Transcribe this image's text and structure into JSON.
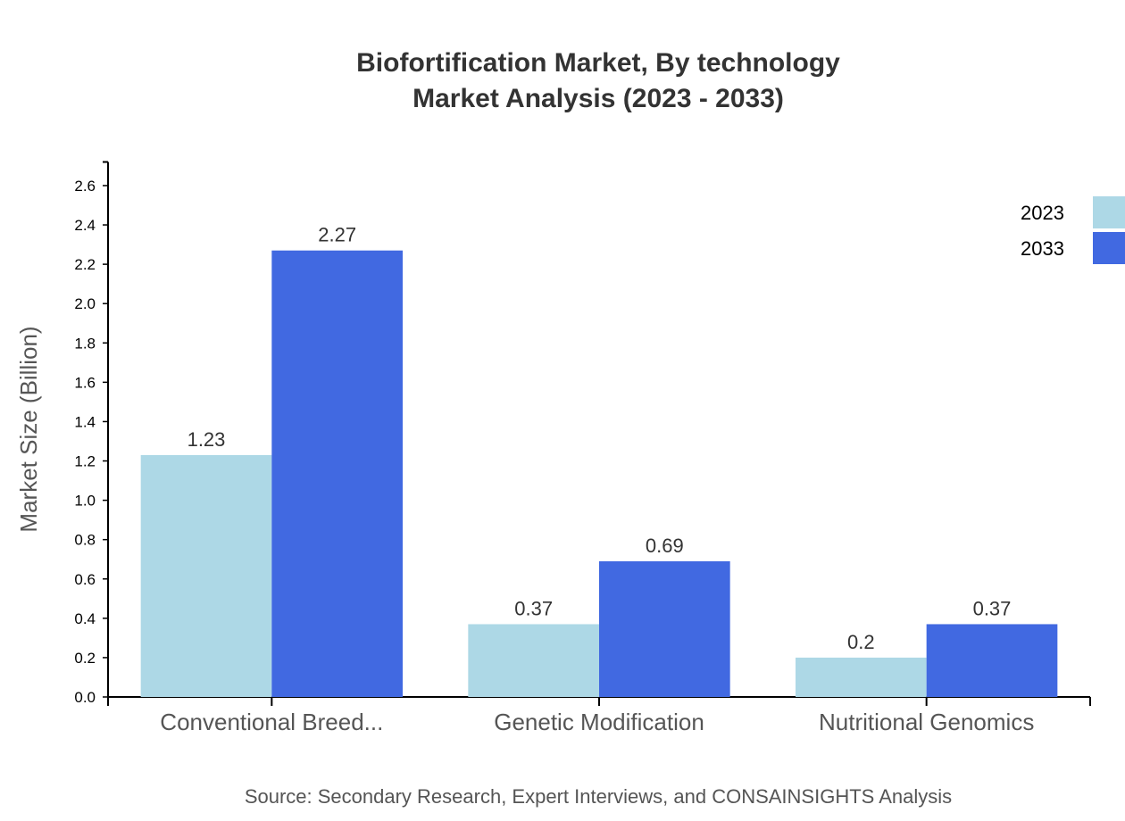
{
  "chart_data": {
    "type": "bar",
    "title": [
      "Biofortification Market, By technology",
      "Market Analysis (2023 - 2033)"
    ],
    "ylabel": "Market Size (Billion)",
    "xlabel": "",
    "ylim": [
      0,
      2.72
    ],
    "yticks": [
      "0.0",
      "0.2",
      "0.4",
      "0.6",
      "0.8",
      "1.0",
      "1.2",
      "1.4",
      "1.6",
      "1.8",
      "2.0",
      "2.2",
      "2.4",
      "2.6"
    ],
    "categories": [
      "Conventional Breed...",
      "Genetic Modification",
      "Nutritional Genomics"
    ],
    "series": [
      {
        "name": "2023",
        "color": "#add8e6",
        "values": [
          1.23,
          0.37,
          0.2
        ]
      },
      {
        "name": "2033",
        "color": "#4169e1",
        "values": [
          2.27,
          0.69,
          0.37
        ]
      }
    ],
    "legend_position": "top-right",
    "grid": false,
    "source": "Source: Secondary Research, Expert Interviews, and CONSAINSIGHTS Analysis"
  }
}
